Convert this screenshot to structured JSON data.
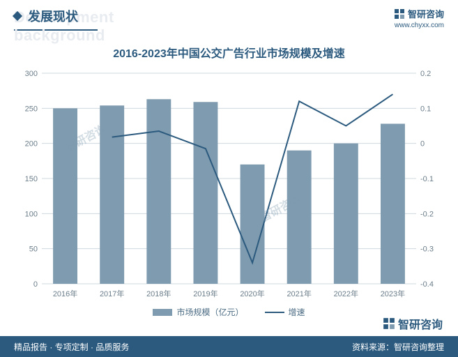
{
  "header": {
    "bg_text": "Development background",
    "title": "发展现状",
    "brand": "智研咨询",
    "url": "www.chyxx.com"
  },
  "chart": {
    "type": "bar+line",
    "title": "2016-2023年中国公交广告行业市场规模及增速",
    "categories": [
      "2016年",
      "2017年",
      "2018年",
      "2019年",
      "2020年",
      "2021年",
      "2022年",
      "2023年"
    ],
    "bar_values": [
      250,
      254,
      263,
      259,
      170,
      190,
      200,
      228
    ],
    "line_values": [
      null,
      0.018,
      0.035,
      -0.015,
      -0.34,
      0.12,
      0.05,
      0.14
    ],
    "bar_color": "#7f9baf",
    "line_color": "#2b5a7e",
    "background_color": "#ffffff",
    "grid_color": "#cfd8df",
    "axis_text_color": "#6b7d8a",
    "left_axis": {
      "min": 0,
      "max": 300,
      "step": 50
    },
    "right_axis": {
      "min": -0.4,
      "max": 0.2,
      "step": 0.1
    },
    "bar_width": 0.52,
    "line_width": 2,
    "legend": {
      "bar_label": "市场规模（亿元）",
      "line_label": "增速"
    }
  },
  "footer": {
    "left": "精品报告 · 专项定制 · 品质服务",
    "right": "资料来源：智研咨询整理"
  },
  "watermark_text": "智研咨询"
}
